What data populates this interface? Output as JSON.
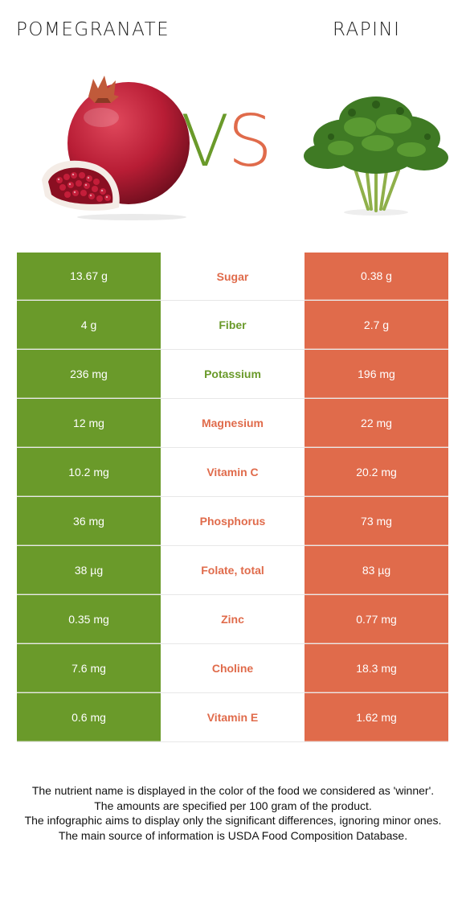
{
  "header": {
    "left_food": "POMEGRANATE",
    "right_food": "RAPINI",
    "vs_v": "V",
    "vs_s": "S"
  },
  "colors": {
    "left_winner": "#6a9a2a",
    "right_winner": "#e06b4b"
  },
  "rows": [
    {
      "left": "13.67 g",
      "nutrient": "Sugar",
      "right": "0.38 g",
      "winner": "red"
    },
    {
      "left": "4 g",
      "nutrient": "Fiber",
      "right": "2.7 g",
      "winner": "green"
    },
    {
      "left": "236 mg",
      "nutrient": "Potassium",
      "right": "196 mg",
      "winner": "green"
    },
    {
      "left": "12 mg",
      "nutrient": "Magnesium",
      "right": "22 mg",
      "winner": "red"
    },
    {
      "left": "10.2 mg",
      "nutrient": "Vitamin C",
      "right": "20.2 mg",
      "winner": "red"
    },
    {
      "left": "36 mg",
      "nutrient": "Phosphorus",
      "right": "73 mg",
      "winner": "red"
    },
    {
      "left": "38 µg",
      "nutrient": "Folate, total",
      "right": "83 µg",
      "winner": "red"
    },
    {
      "left": "0.35 mg",
      "nutrient": "Zinc",
      "right": "0.77 mg",
      "winner": "red"
    },
    {
      "left": "7.6 mg",
      "nutrient": "Choline",
      "right": "18.3 mg",
      "winner": "red"
    },
    {
      "left": "0.6 mg",
      "nutrient": "Vitamin E",
      "right": "1.62 mg",
      "winner": "red"
    }
  ],
  "footnote": {
    "line1": "The nutrient name is displayed in the color of the food we considered as 'winner'.",
    "line2": "The amounts are specified per 100 gram of the product.",
    "line3": "The infographic aims to display only the significant differences, ignoring minor ones.",
    "line4": "The main source of information is USDA Food Composition Database."
  }
}
